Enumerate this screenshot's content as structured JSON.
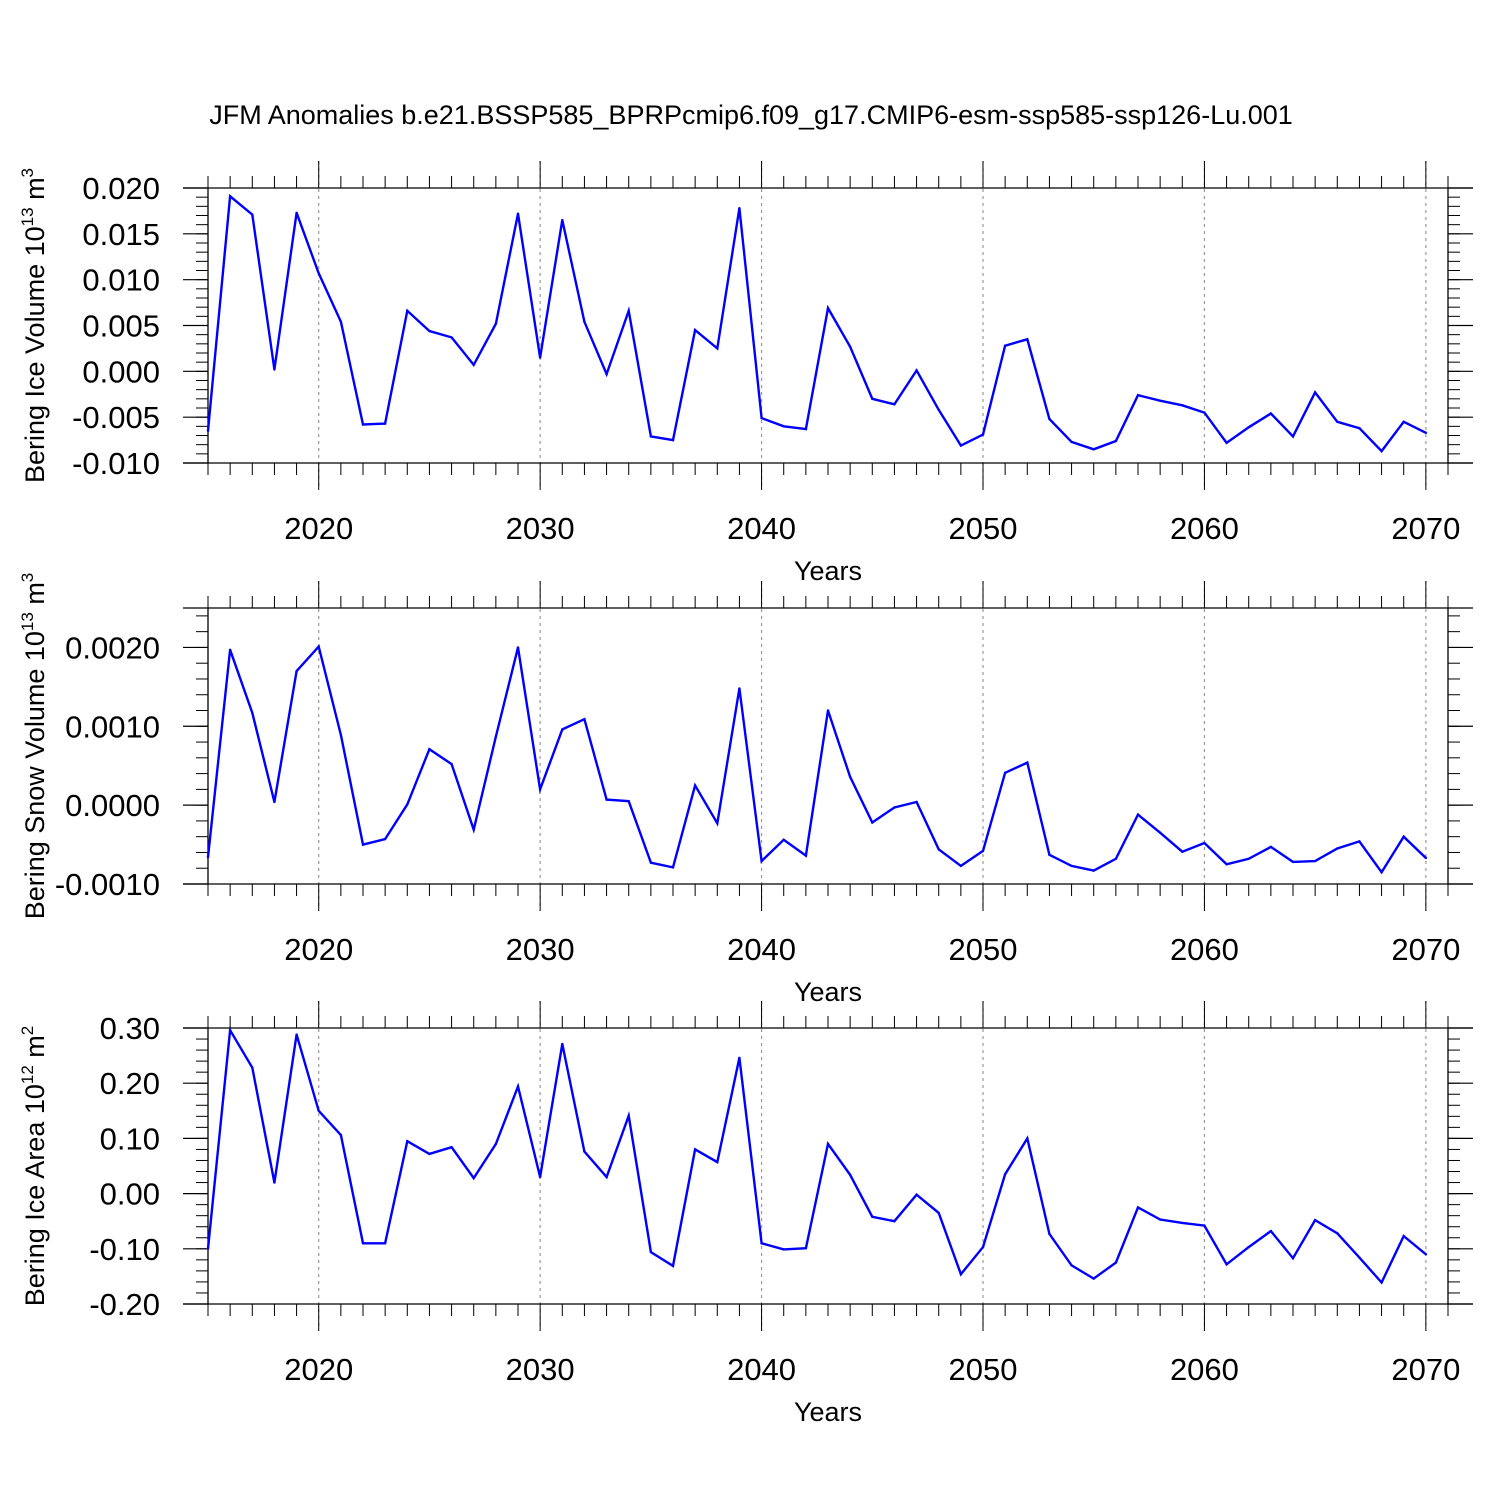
{
  "title": "JFM Anomalies b.e21.BSSP585_BPRPcmip6.f09_g17.CMIP6-esm-ssp585-ssp126-Lu.001",
  "line_color": "#0000ff",
  "chart_data": [
    {
      "type": "line",
      "series_name": "Bering Ice Volume",
      "ylabel": "Bering Ice Volume 10",
      "ylabel_exp": "13",
      "ylabel_unit": " m",
      "ylabel_unit_exp": "3",
      "xlabel": "Years",
      "xlim": [
        2015,
        2071
      ],
      "ylim": [
        -0.01,
        0.02
      ],
      "yticks": [
        -0.01,
        -0.005,
        0.0,
        0.005,
        0.01,
        0.015,
        0.02
      ],
      "ytick_labels": [
        "-0.010",
        "-0.005",
        "0.000",
        "0.005",
        "0.010",
        "0.015",
        "0.020"
      ],
      "xticks": [
        2020,
        2030,
        2040,
        2050,
        2060,
        2070
      ],
      "xtick_labels": [
        "2020",
        "2030",
        "2040",
        "2050",
        "2060",
        "2070"
      ],
      "x": [
        2015,
        2016,
        2017,
        2018,
        2019,
        2020,
        2021,
        2022,
        2023,
        2024,
        2025,
        2026,
        2027,
        2028,
        2029,
        2030,
        2031,
        2032,
        2033,
        2034,
        2035,
        2036,
        2037,
        2038,
        2039,
        2040,
        2041,
        2042,
        2043,
        2044,
        2045,
        2046,
        2047,
        2048,
        2049,
        2050,
        2051,
        2052,
        2053,
        2054,
        2055,
        2056,
        2057,
        2058,
        2059,
        2060,
        2061,
        2062,
        2063,
        2064,
        2065,
        2066,
        2067,
        2068,
        2069,
        2070
      ],
      "y": [
        -0.0065,
        0.0191,
        0.0171,
        0.0002,
        0.0173,
        0.0107,
        0.0054,
        -0.0058,
        -0.0057,
        0.0066,
        0.0044,
        0.0037,
        0.0007,
        0.0052,
        0.0172,
        0.0015,
        0.0165,
        0.0054,
        -0.0003,
        0.0066,
        -0.0071,
        -0.0075,
        0.0045,
        0.0025,
        0.0178,
        -0.0051,
        -0.006,
        -0.0063,
        0.0069,
        0.0027,
        -0.003,
        -0.0036,
        0.0001,
        -0.0042,
        -0.0081,
        -0.0069,
        0.0028,
        0.0035,
        -0.0052,
        -0.0077,
        -0.0085,
        -0.0076,
        -0.0026,
        -0.0032,
        -0.0037,
        -0.0045,
        -0.0078,
        -0.0061,
        -0.0046,
        -0.0071,
        -0.0023,
        -0.0055,
        -0.0062,
        -0.0087,
        -0.0055,
        -0.0067
      ]
    },
    {
      "type": "line",
      "series_name": "Bering Snow Volume",
      "ylabel": "Bering Snow Volume 10",
      "ylabel_exp": "13",
      "ylabel_unit": " m",
      "ylabel_unit_exp": "3",
      "xlabel": "Years",
      "xlim": [
        2015,
        2071
      ],
      "ylim": [
        -0.001,
        0.0025
      ],
      "yticks": [
        -0.001,
        0.0,
        0.001,
        0.002
      ],
      "ytick_labels": [
        "-0.0010",
        "0.0000",
        "0.0010",
        "0.0020"
      ],
      "xticks": [
        2020,
        2030,
        2040,
        2050,
        2060,
        2070
      ],
      "xtick_labels": [
        "2020",
        "2030",
        "2040",
        "2050",
        "2060",
        "2070"
      ],
      "x": [
        2015,
        2016,
        2017,
        2018,
        2019,
        2020,
        2021,
        2022,
        2023,
        2024,
        2025,
        2026,
        2027,
        2028,
        2029,
        2030,
        2031,
        2032,
        2033,
        2034,
        2035,
        2036,
        2037,
        2038,
        2039,
        2040,
        2041,
        2042,
        2043,
        2044,
        2045,
        2046,
        2047,
        2048,
        2049,
        2050,
        2051,
        2052,
        2053,
        2054,
        2055,
        2056,
        2057,
        2058,
        2059,
        2060,
        2061,
        2062,
        2063,
        2064,
        2065,
        2066,
        2067,
        2068,
        2069,
        2070
      ],
      "y": [
        -0.00066,
        0.00197,
        0.00117,
        4e-05,
        0.0017,
        0.00201,
        0.00089,
        -0.0005,
        -0.00043,
        1e-05,
        0.00071,
        0.00052,
        -0.00031,
        0.00087,
        0.002,
        0.0002,
        0.00096,
        0.00109,
        7e-05,
        5e-05,
        -0.00073,
        -0.00079,
        0.00025,
        -0.00023,
        0.00148,
        -0.00071,
        -0.00044,
        -0.00064,
        0.0012,
        0.00036,
        -0.00022,
        -3e-05,
        4e-05,
        -0.00056,
        -0.00077,
        -0.00058,
        0.00041,
        0.00054,
        -0.00063,
        -0.00077,
        -0.00083,
        -0.00068,
        -0.00012,
        -0.00035,
        -0.00059,
        -0.00048,
        -0.00075,
        -0.00068,
        -0.00053,
        -0.00072,
        -0.00071,
        -0.00055,
        -0.00046,
        -0.00085,
        -0.0004,
        -0.00067
      ]
    },
    {
      "type": "line",
      "series_name": "Bering Ice Area",
      "ylabel": "Bering Ice Area 10",
      "ylabel_exp": "12",
      "ylabel_unit": " m",
      "ylabel_unit_exp": "2",
      "xlabel": "Years",
      "xlim": [
        2015,
        2071
      ],
      "ylim": [
        -0.2,
        0.3
      ],
      "yticks": [
        -0.2,
        -0.1,
        0.0,
        0.1,
        0.2,
        0.3
      ],
      "ytick_labels": [
        "-0.20",
        "-0.10",
        "0.00",
        "0.10",
        "0.20",
        "0.30"
      ],
      "xticks": [
        2020,
        2030,
        2040,
        2050,
        2060,
        2070
      ],
      "xtick_labels": [
        "2020",
        "2030",
        "2040",
        "2050",
        "2060",
        "2070"
      ],
      "x": [
        2015,
        2016,
        2017,
        2018,
        2019,
        2020,
        2021,
        2022,
        2023,
        2024,
        2025,
        2026,
        2027,
        2028,
        2029,
        2030,
        2031,
        2032,
        2033,
        2034,
        2035,
        2036,
        2037,
        2038,
        2039,
        2040,
        2041,
        2042,
        2043,
        2044,
        2045,
        2046,
        2047,
        2048,
        2049,
        2050,
        2051,
        2052,
        2053,
        2054,
        2055,
        2056,
        2057,
        2058,
        2059,
        2060,
        2061,
        2062,
        2063,
        2064,
        2065,
        2066,
        2067,
        2068,
        2069,
        2070
      ],
      "y": [
        -0.1,
        0.296,
        0.228,
        0.02,
        0.288,
        0.15,
        0.106,
        -0.09,
        -0.09,
        0.095,
        0.072,
        0.084,
        0.028,
        0.09,
        0.194,
        0.03,
        0.271,
        0.076,
        0.03,
        0.141,
        -0.106,
        -0.131,
        0.08,
        0.057,
        0.246,
        -0.09,
        -0.101,
        -0.099,
        0.09,
        0.034,
        -0.042,
        -0.05,
        -0.002,
        -0.035,
        -0.146,
        -0.097,
        0.035,
        0.1,
        -0.073,
        -0.13,
        -0.154,
        -0.125,
        -0.025,
        -0.047,
        -0.053,
        -0.058,
        -0.128,
        -0.097,
        -0.068,
        -0.117,
        -0.048,
        -0.072,
        -0.116,
        -0.161,
        -0.077,
        -0.11
      ]
    }
  ]
}
